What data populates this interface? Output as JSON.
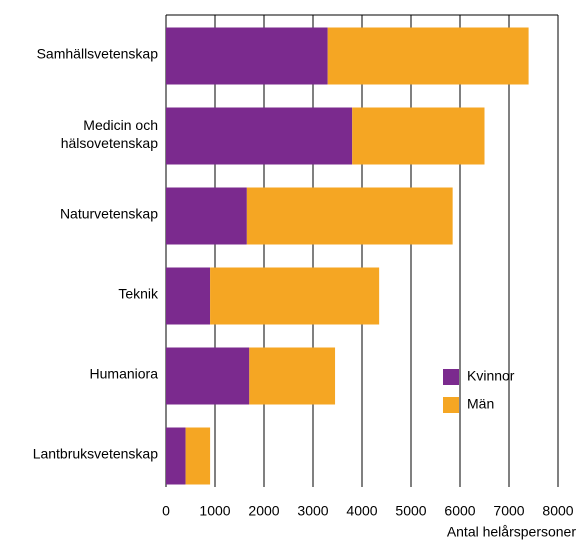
{
  "chart_data": {
    "type": "stacked_bar_horizontal",
    "categories": [
      "Samhällsvetenskap",
      "Medicin och\nhälsovetenskap",
      "Naturvetenskap",
      "Teknik",
      "Humaniora",
      "Lantbruksvetenskap"
    ],
    "series": [
      {
        "name": "Kvinnor",
        "color": "#7b2a8e",
        "values": [
          3300,
          3800,
          1650,
          900,
          1700,
          400
        ]
      },
      {
        "name": "Män",
        "color": "#f5a623",
        "values": [
          4100,
          2700,
          4200,
          3450,
          1750,
          500
        ]
      }
    ],
    "xlim": [
      0,
      8000
    ],
    "xticks": [
      0,
      1000,
      2000,
      3000,
      4000,
      5000,
      6000,
      7000,
      8000
    ],
    "xlabel": "Antal helårspersoner",
    "grid": true
  }
}
